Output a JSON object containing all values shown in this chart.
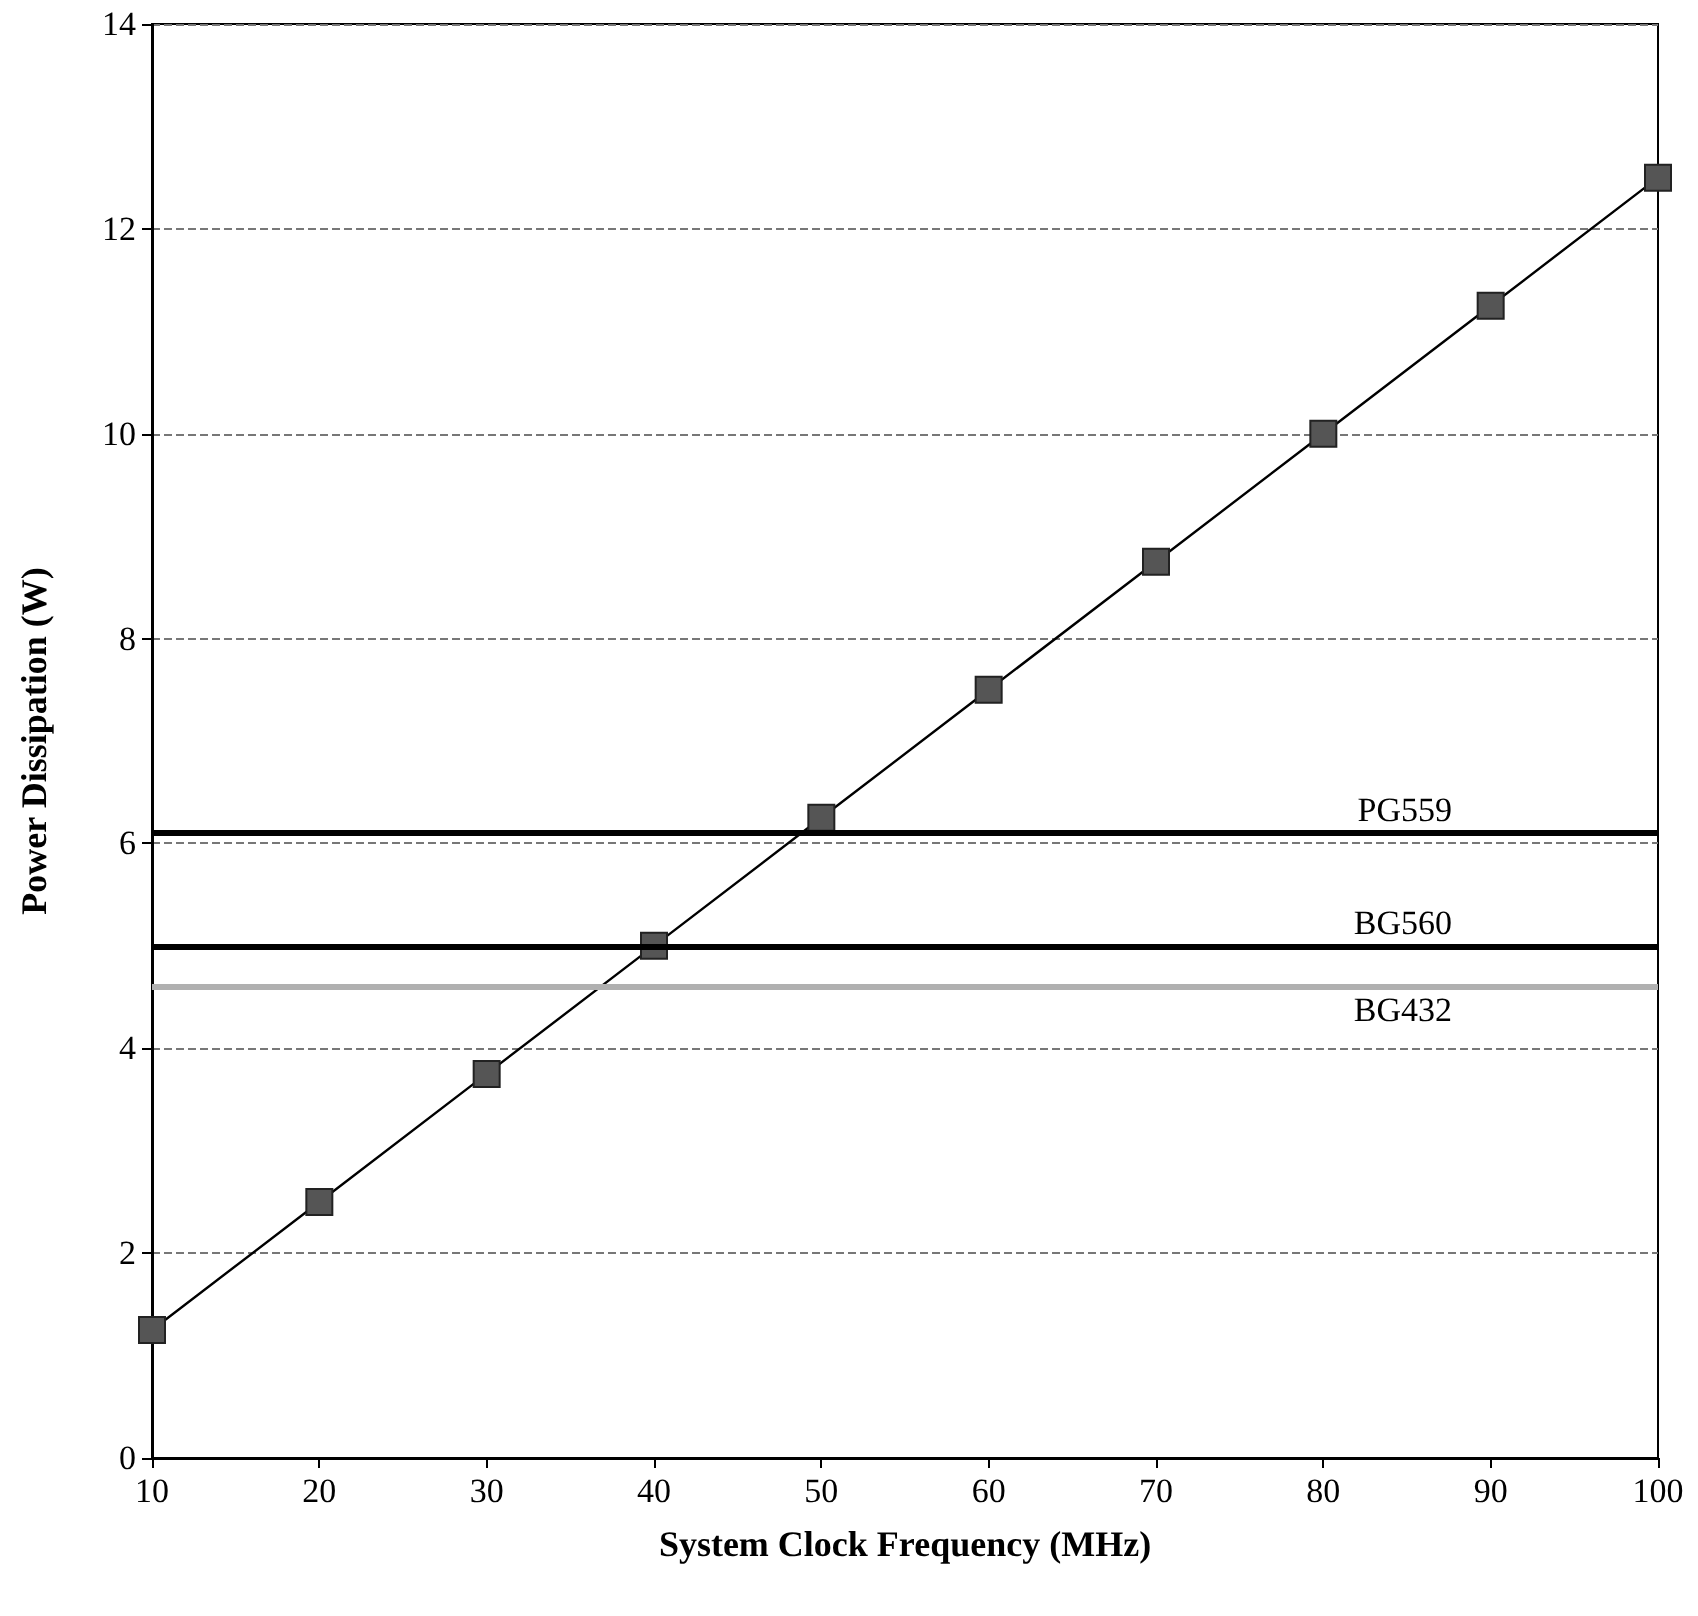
{
  "chart_data": {
    "type": "line",
    "xlabel": "System Clock Frequency (MHz)",
    "ylabel": "Power Dissipation (W)",
    "x": [
      10,
      20,
      30,
      40,
      50,
      60,
      70,
      80,
      90,
      100
    ],
    "series": [
      {
        "color": "#555555",
        "values": [
          1.25,
          2.5,
          3.75,
          5,
          6.25,
          7.5,
          8.75,
          10,
          11.25,
          12.5
        ]
      }
    ],
    "xlim": [
      10,
      100
    ],
    "xticks": [
      10,
      20,
      30,
      40,
      50,
      60,
      70,
      80,
      90,
      100
    ],
    "ylim": [
      0,
      14
    ],
    "yticks": [
      0,
      2,
      4,
      6,
      8,
      10,
      12,
      14
    ],
    "grid": "y",
    "marker": "square",
    "line_style": "solid",
    "ref_lines": [
      {
        "axis": "y",
        "value": 6.1,
        "label": "PG559",
        "color": "#000000"
      },
      {
        "axis": "y",
        "value": 5.0,
        "label": "BG560",
        "color": "#000000"
      },
      {
        "axis": "y",
        "value": 4.6,
        "label": "BG432",
        "color": "#b0b0b0"
      }
    ]
  }
}
